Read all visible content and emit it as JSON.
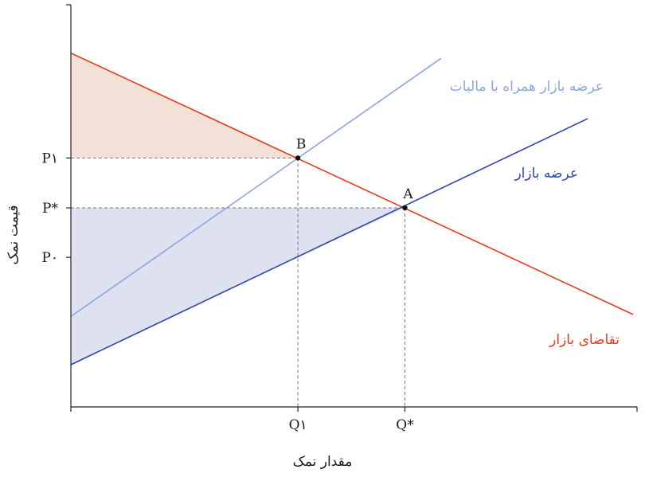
{
  "chart_data": {
    "type": "line",
    "xlabel": "مقدار نمک",
    "ylabel": "قیمت نمک",
    "xlim": [
      0,
      100
    ],
    "ylim": [
      0,
      100
    ],
    "x_ticks": [
      {
        "label": "Q۱",
        "value": 40.1
      },
      {
        "label": "Q*",
        "value": 59.0
      }
    ],
    "y_ticks": [
      {
        "label": "P۱",
        "value": 61.9
      },
      {
        "label": "P*",
        "value": 49.5
      },
      {
        "label": "P۰",
        "value": 37.2
      }
    ],
    "series": [
      {
        "name": "تقاضای بازار",
        "color": "#e53a1e",
        "points": [
          [
            0,
            88.0
          ],
          [
            99.3,
            23.0
          ]
        ]
      },
      {
        "name": "عرضه بازار",
        "color": "#2d46a8",
        "points": [
          [
            0,
            10.5
          ],
          [
            91.3,
            71.7
          ]
        ]
      },
      {
        "name": "عرضه بازار همراه با مالیات",
        "color": "#8ea5e0",
        "points": [
          [
            0,
            22.5
          ],
          [
            65.4,
            86.7
          ]
        ]
      }
    ],
    "points": [
      {
        "label": "B",
        "x": 40.1,
        "y": 61.9
      },
      {
        "label": "A",
        "x": 59.0,
        "y": 49.5
      }
    ],
    "shaded_regions": [
      {
        "color": "#f3e0d7",
        "polygon": [
          [
            0,
            88.0
          ],
          [
            0,
            61.9
          ],
          [
            40.1,
            61.9
          ]
        ]
      },
      {
        "color": "#dde1f0",
        "polygon": [
          [
            0,
            49.5
          ],
          [
            59.0,
            49.5
          ],
          [
            40.1,
            37.2
          ],
          [
            0,
            10.5
          ]
        ]
      }
    ],
    "colors": {
      "axis": "#222222",
      "guide": "#777777"
    }
  }
}
